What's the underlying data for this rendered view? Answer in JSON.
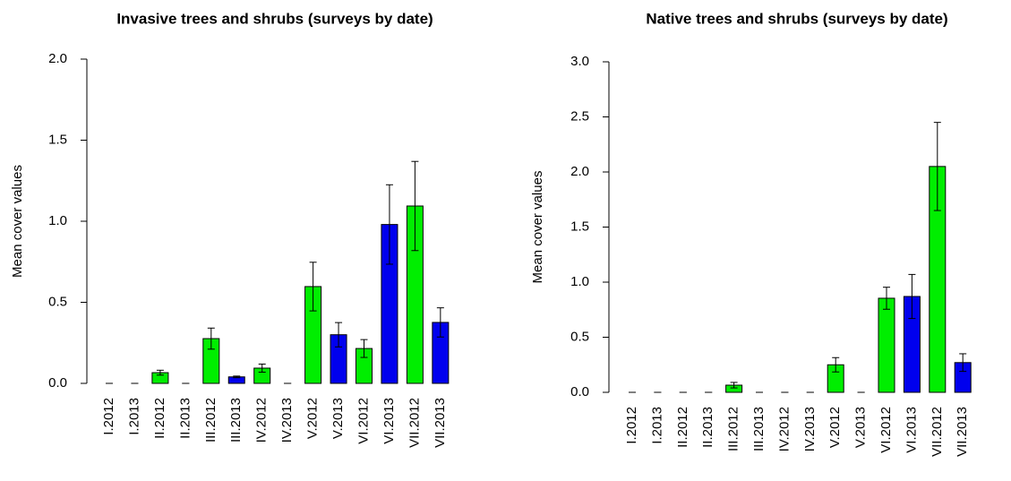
{
  "chart_data": [
    {
      "type": "bar",
      "title": "Invasive trees and shrubs (surveys by date)",
      "y_label": "Mean cover values",
      "categories": [
        "I.2012",
        "I.2013",
        "II.2012",
        "II.2013",
        "III.2012",
        "III.2013",
        "IV.2012",
        "IV.2013",
        "V.2012",
        "V.2013",
        "VI.2012",
        "VI.2013",
        "VII.2012",
        "VII.2013"
      ],
      "values": [
        0,
        0,
        0.066,
        0,
        0.276,
        0.04,
        0.094,
        0,
        0.597,
        0.3,
        0.215,
        0.98,
        1.094,
        0.376
      ],
      "errors": [
        0,
        0,
        0.015,
        0,
        0.065,
        0.005,
        0.025,
        0,
        0.15,
        0.075,
        0.055,
        0.245,
        0.275,
        0.09
      ],
      "colors": [
        "#00ee00",
        "#0000ee",
        "#00ee00",
        "#0000ee",
        "#00ee00",
        "#0000ee",
        "#00ee00",
        "#0000ee",
        "#00ee00",
        "#0000ee",
        "#00ee00",
        "#0000ee",
        "#00ee00",
        "#0000ee"
      ],
      "ylim": [
        0,
        2.0
      ],
      "yticks": [
        {
          "value": 0,
          "label": "0.0"
        },
        0.5,
        {
          "value": 1,
          "label": "1.0"
        },
        1.5,
        {
          "value": 2,
          "label": "2.0"
        }
      ]
    },
    {
      "type": "bar",
      "title": "Native trees and shrubs (surveys by date)",
      "y_label": "Mean cover values",
      "categories": [
        "I.2012",
        "I.2013",
        "II.2012",
        "II.2013",
        "III.2012",
        "III.2013",
        "IV.2012",
        "IV.2013",
        "V.2012",
        "V.2013",
        "VI.2012",
        "VI.2013",
        "VII.2012",
        "VII.2013"
      ],
      "values": [
        0,
        0,
        0,
        0,
        0.065,
        0,
        0,
        0,
        0.25,
        0,
        0.854,
        0.87,
        2.05,
        0.27
      ],
      "errors": [
        0,
        0,
        0,
        0,
        0.025,
        0,
        0,
        0,
        0.065,
        0,
        0.1,
        0.2,
        0.4,
        0.08
      ],
      "colors": [
        "#00ee00",
        "#0000ee",
        "#00ee00",
        "#0000ee",
        "#00ee00",
        "#0000ee",
        "#00ee00",
        "#0000ee",
        "#00ee00",
        "#0000ee",
        "#00ee00",
        "#0000ee",
        "#00ee00",
        "#0000ee"
      ],
      "ylim": [
        0,
        3.0
      ],
      "yticks": [
        {
          "value": 0,
          "label": "0.0"
        },
        0.5,
        {
          "value": 1,
          "label": "1.0"
        },
        1.5,
        {
          "value": 2,
          "label": "2.0"
        },
        2.5,
        {
          "value": 3,
          "label": "3.0"
        }
      ]
    }
  ]
}
